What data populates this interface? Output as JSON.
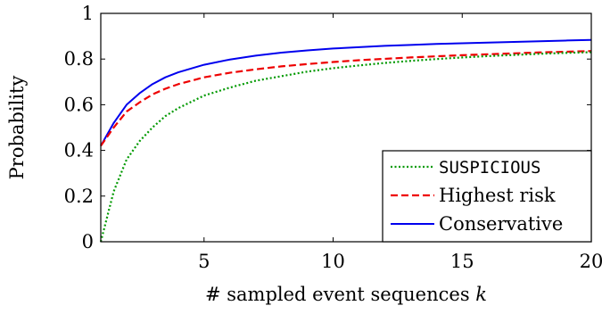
{
  "chart_data": {
    "type": "line",
    "title": "",
    "xlabel": "# sampled event sequences",
    "xlabel_var": "k",
    "ylabel": "Probability",
    "xlim": [
      1,
      20
    ],
    "ylim": [
      0,
      1
    ],
    "x_ticks": [
      5,
      10,
      15,
      20
    ],
    "y_ticks": [
      0,
      0.2,
      0.4,
      0.6,
      0.8,
      1
    ],
    "y_tick_labels": [
      "0",
      "0.2",
      "0.4",
      "0.6",
      "0.8",
      "1"
    ],
    "grid": false,
    "legend_position": "bottom-right",
    "x": [
      1,
      1.5,
      2,
      2.5,
      3,
      3.5,
      4,
      5,
      6,
      7,
      8,
      9,
      10,
      11,
      12,
      13,
      14,
      15,
      16,
      17,
      18,
      19,
      20
    ],
    "series": [
      {
        "name": "SUSPICIOUS",
        "color": "#009900",
        "style": "dotted",
        "values": [
          0.0,
          0.22,
          0.36,
          0.44,
          0.5,
          0.55,
          0.585,
          0.64,
          0.675,
          0.705,
          0.725,
          0.745,
          0.76,
          0.772,
          0.783,
          0.792,
          0.8,
          0.807,
          0.813,
          0.818,
          0.823,
          0.827,
          0.83
        ]
      },
      {
        "name": "Highest risk",
        "color": "#ee0000",
        "style": "dashed",
        "values": [
          0.42,
          0.5,
          0.57,
          0.61,
          0.645,
          0.67,
          0.69,
          0.72,
          0.74,
          0.755,
          0.768,
          0.778,
          0.787,
          0.795,
          0.801,
          0.807,
          0.812,
          0.817,
          0.821,
          0.825,
          0.829,
          0.832,
          0.835
        ]
      },
      {
        "name": "Conservative",
        "color": "#0000ee",
        "style": "solid",
        "values": [
          0.42,
          0.52,
          0.6,
          0.65,
          0.69,
          0.72,
          0.742,
          0.775,
          0.798,
          0.815,
          0.828,
          0.838,
          0.846,
          0.852,
          0.858,
          0.862,
          0.866,
          0.869,
          0.872,
          0.875,
          0.878,
          0.881,
          0.884
        ]
      }
    ]
  }
}
